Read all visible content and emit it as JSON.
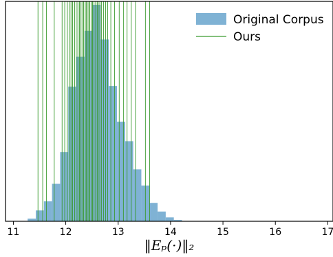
{
  "chart_data": {
    "type": "histogram",
    "xlabel": "‖Eₚ(·)‖₂",
    "xlim": [
      10.85,
      17.1
    ],
    "ylim": [
      0,
      1.0
    ],
    "xticks": [
      "11",
      "12",
      "13",
      "14",
      "15",
      "16",
      "17"
    ],
    "xtick_values": [
      11,
      12,
      13,
      14,
      15,
      16,
      17
    ],
    "grid": false,
    "legend_position": "top-right",
    "series": [
      {
        "name": "Original Corpus",
        "kind": "bars",
        "color": "#7fb2d4",
        "bin_width": 0.155,
        "bins": [
          {
            "x": 11.35,
            "height": 0.012
          },
          {
            "x": 11.505,
            "height": 0.05
          },
          {
            "x": 11.66,
            "height": 0.092
          },
          {
            "x": 11.815,
            "height": 0.173
          },
          {
            "x": 11.97,
            "height": 0.32
          },
          {
            "x": 12.125,
            "height": 0.622
          },
          {
            "x": 12.28,
            "height": 0.76
          },
          {
            "x": 12.435,
            "height": 0.88
          },
          {
            "x": 12.59,
            "height": 1.0
          },
          {
            "x": 12.745,
            "height": 0.84
          },
          {
            "x": 12.9,
            "height": 0.625
          },
          {
            "x": 13.055,
            "height": 0.46
          },
          {
            "x": 13.21,
            "height": 0.37
          },
          {
            "x": 13.365,
            "height": 0.24
          },
          {
            "x": 13.52,
            "height": 0.165
          },
          {
            "x": 13.675,
            "height": 0.085
          },
          {
            "x": 13.83,
            "height": 0.045
          },
          {
            "x": 13.985,
            "height": 0.018
          },
          {
            "x": 14.14,
            "height": 0.006
          }
        ]
      },
      {
        "name": "Ours",
        "kind": "vertical-lines",
        "color": "#3a9a2e",
        "x_values": [
          11.47,
          11.56,
          11.63,
          11.78,
          11.93,
          11.98,
          12.03,
          12.07,
          12.1,
          12.13,
          12.17,
          12.2,
          12.23,
          12.26,
          12.28,
          12.31,
          12.34,
          12.37,
          12.39,
          12.41,
          12.44,
          12.46,
          12.49,
          12.51,
          12.54,
          12.57,
          12.6,
          12.62,
          12.65,
          12.68,
          12.72,
          12.76,
          12.8,
          12.86,
          12.93,
          13.02,
          13.1,
          13.17,
          13.25,
          13.33,
          13.52,
          13.6
        ]
      }
    ]
  }
}
